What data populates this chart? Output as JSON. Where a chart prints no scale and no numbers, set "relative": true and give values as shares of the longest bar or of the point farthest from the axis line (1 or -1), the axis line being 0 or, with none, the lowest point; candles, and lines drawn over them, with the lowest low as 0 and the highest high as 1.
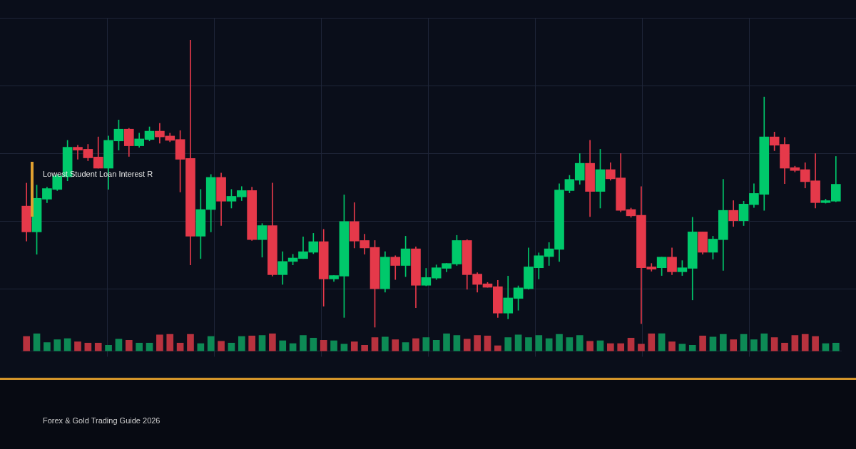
{
  "chart_data": [
    {
      "type": "candlestick",
      "title": "Lowest Student Loan Interest R",
      "subtitle": "Forex & Gold Trading Guide 2026",
      "relative": true,
      "grid": true,
      "categories": [
        null,
        null,
        null,
        null,
        null,
        null,
        null,
        null,
        null,
        null,
        null,
        null,
        null,
        null,
        null,
        null,
        null,
        null,
        null,
        null,
        null,
        null,
        null,
        null,
        null,
        null,
        null,
        null,
        null,
        null,
        null,
        null,
        null,
        null,
        null,
        null,
        null,
        null,
        null,
        null,
        null,
        null,
        null,
        null,
        null,
        null,
        null,
        null,
        null,
        null,
        null,
        null,
        null,
        null,
        null,
        null,
        null,
        null,
        null,
        null,
        null,
        null,
        null,
        null,
        null,
        null,
        null,
        null,
        null,
        null,
        null,
        null,
        null,
        null,
        null,
        null,
        null,
        null,
        null,
        null
      ],
      "ohlc": [
        [
          0.422,
          0.502,
          0.3,
          0.332
        ],
        [
          0.332,
          0.495,
          0.254,
          0.449
        ],
        [
          0.446,
          0.488,
          0.434,
          0.483
        ],
        [
          0.48,
          0.532,
          0.476,
          0.527
        ],
        [
          0.524,
          0.651,
          0.51,
          0.627
        ],
        [
          0.627,
          0.634,
          0.585,
          0.617
        ],
        [
          0.62,
          0.637,
          0.58,
          0.59
        ],
        [
          0.593,
          0.663,
          0.554,
          0.554
        ],
        [
          0.554,
          0.666,
          0.48,
          0.651
        ],
        [
          0.649,
          0.722,
          0.617,
          0.69
        ],
        [
          0.69,
          0.693,
          0.595,
          0.632
        ],
        [
          0.632,
          0.676,
          0.627,
          0.656
        ],
        [
          0.654,
          0.698,
          0.649,
          0.683
        ],
        [
          0.683,
          0.71,
          0.641,
          0.663
        ],
        [
          0.666,
          0.676,
          0.646,
          0.651
        ],
        [
          0.654,
          0.685,
          0.471,
          0.585
        ],
        [
          0.588,
          1,
          0.217,
          0.317
        ],
        [
          0.317,
          0.48,
          0.239,
          0.41
        ],
        [
          0.41,
          0.532,
          0.332,
          0.522
        ],
        [
          0.522,
          0.537,
          0.354,
          0.439
        ],
        [
          0.439,
          0.48,
          0.415,
          0.456
        ],
        [
          0.454,
          0.49,
          0.441,
          0.476
        ],
        [
          0.476,
          0.488,
          0.302,
          0.305
        ],
        [
          0.305,
          0.361,
          0.244,
          0.354
        ],
        [
          0.354,
          0.502,
          0.178,
          0.183
        ],
        [
          0.183,
          0.263,
          0.149,
          0.229
        ],
        [
          0.229,
          0.254,
          0.217,
          0.241
        ],
        [
          0.239,
          0.315,
          0.239,
          0.263
        ],
        [
          0.261,
          0.327,
          0.256,
          0.298
        ],
        [
          0.298,
          0.341,
          0.073,
          0.168
        ],
        [
          0.168,
          0.18,
          0.159,
          0.18
        ],
        [
          0.178,
          0.461,
          0.034,
          0.368
        ],
        [
          0.368,
          0.434,
          0.276,
          0.3
        ],
        [
          0.302,
          0.324,
          0.254,
          0.276
        ],
        [
          0.278,
          0.302,
          0,
          0.134
        ],
        [
          0.134,
          0.263,
          0.122,
          0.244
        ],
        [
          0.244,
          0.249,
          0.166,
          0.215
        ],
        [
          0.215,
          0.317,
          0.176,
          0.273
        ],
        [
          0.273,
          0.28,
          0.068,
          0.146
        ],
        [
          0.146,
          0.205,
          0.144,
          0.173
        ],
        [
          0.171,
          0.217,
          0.166,
          0.207
        ],
        [
          0.205,
          0.222,
          0.193,
          0.222
        ],
        [
          0.22,
          0.32,
          0.215,
          0.302
        ],
        [
          0.302,
          0.305,
          0.132,
          0.183
        ],
        [
          0.185,
          0.19,
          0.122,
          0.149
        ],
        [
          0.151,
          0.156,
          0.139,
          0.139
        ],
        [
          0.141,
          0.163,
          0.034,
          0.049
        ],
        [
          0.049,
          0.178,
          0.029,
          0.102
        ],
        [
          0.1,
          0.144,
          0.059,
          0.137
        ],
        [
          0.134,
          0.276,
          0.132,
          0.21
        ],
        [
          0.207,
          0.259,
          0.168,
          0.249
        ],
        [
          0.246,
          0.295,
          0.215,
          0.273
        ],
        [
          0.271,
          0.5,
          0.229,
          0.478
        ],
        [
          0.476,
          0.529,
          0.468,
          0.515
        ],
        [
          0.512,
          0.605,
          0.498,
          0.571
        ],
        [
          0.571,
          0.651,
          0.385,
          0.473
        ],
        [
          0.473,
          0.62,
          0.415,
          0.549
        ],
        [
          0.549,
          0.573,
          0.512,
          0.517
        ],
        [
          0.52,
          0.605,
          0.402,
          0.407
        ],
        [
          0.41,
          0.415,
          0.383,
          0.388
        ],
        [
          0.39,
          0.49,
          0.012,
          0.207
        ],
        [
          0.21,
          0.222,
          0.195,
          0.202
        ],
        [
          0.207,
          0.244,
          0.18,
          0.244
        ],
        [
          0.244,
          0.276,
          0.183,
          0.193
        ],
        [
          0.193,
          0.232,
          0.18,
          0.207
        ],
        [
          0.205,
          0.383,
          0.095,
          0.332
        ],
        [
          0.332,
          0.332,
          0.254,
          0.261
        ],
        [
          0.261,
          0.317,
          0.237,
          0.307
        ],
        [
          0.305,
          0.515,
          0.198,
          0.407
        ],
        [
          0.407,
          0.441,
          0.351,
          0.371
        ],
        [
          0.371,
          0.439,
          0.354,
          0.429
        ],
        [
          0.427,
          0.5,
          0.417,
          0.466
        ],
        [
          0.463,
          0.802,
          0.407,
          0.663
        ],
        [
          0.663,
          0.68,
          0.615,
          0.634
        ],
        [
          0.637,
          0.661,
          0.5,
          0.554
        ],
        [
          0.556,
          0.561,
          0.541,
          0.546
        ],
        [
          0.549,
          0.573,
          0.485,
          0.507
        ],
        [
          0.51,
          0.605,
          0.415,
          0.434
        ],
        [
          0.434,
          0.446,
          0.432,
          0.441
        ],
        [
          0.439,
          0.595,
          0.437,
          0.498
        ]
      ],
      "colors": [
        "#e5394a",
        "#00c96b",
        "#00c96b",
        "#00c96b",
        "#00c96b",
        "#e5394a",
        "#e5394a",
        "#e5394a",
        "#00c96b",
        "#00c96b",
        "#e5394a",
        "#00c96b",
        "#00c96b",
        "#e5394a",
        "#e5394a",
        "#e5394a",
        "#e5394a",
        "#00c96b",
        "#00c96b",
        "#e5394a",
        "#00c96b",
        "#00c96b",
        "#e5394a",
        "#00c96b",
        "#e5394a",
        "#00c96b",
        "#00c96b",
        "#00c96b",
        "#00c96b",
        "#e5394a",
        "#00c96b",
        "#00c96b",
        "#e5394a",
        "#e5394a",
        "#e5394a",
        "#00c96b",
        "#e5394a",
        "#00c96b",
        "#e5394a",
        "#00c96b",
        "#00c96b",
        "#00c96b",
        "#00c96b",
        "#e5394a",
        "#e5394a",
        "#e5394a",
        "#e5394a",
        "#00c96b",
        "#00c96b",
        "#00c96b",
        "#00c96b",
        "#00c96b",
        "#00c96b",
        "#00c96b",
        "#00c96b",
        "#e5394a",
        "#00c96b",
        "#e5394a",
        "#e5394a",
        "#e5394a",
        "#e5394a",
        "#e5394a",
        "#00c96b",
        "#e5394a",
        "#00c96b",
        "#00c96b",
        "#e5394a",
        "#00c96b",
        "#00c96b",
        "#e5394a",
        "#00c96b",
        "#00c96b",
        "#00c96b",
        "#e5394a",
        "#e5394a",
        "#e5394a",
        "#e5394a",
        "#e5394a",
        "#00c96b",
        "#00c96b"
      ]
    },
    {
      "type": "bar",
      "relative": true,
      "grid": true,
      "categories": [
        null,
        null,
        null,
        null,
        null,
        null,
        null,
        null,
        null,
        null,
        null,
        null,
        null,
        null,
        null,
        null,
        null,
        null,
        null,
        null,
        null,
        null,
        null,
        null,
        null,
        null,
        null,
        null,
        null,
        null,
        null,
        null,
        null,
        null,
        null,
        null,
        null,
        null,
        null,
        null,
        null,
        null,
        null,
        null,
        null,
        null,
        null,
        null,
        null,
        null,
        null,
        null,
        null,
        null,
        null,
        null,
        null,
        null,
        null,
        null,
        null,
        null,
        null,
        null,
        null,
        null,
        null,
        null,
        null,
        null,
        null,
        null,
        null,
        null,
        null,
        null,
        null,
        null,
        null,
        null
      ],
      "values": [
        0.82,
        0.97,
        0.48,
        0.64,
        0.7,
        0.52,
        0.45,
        0.45,
        0.33,
        0.67,
        0.61,
        0.45,
        0.45,
        0.91,
        0.94,
        0.45,
        0.94,
        0.42,
        0.82,
        0.55,
        0.45,
        0.82,
        0.85,
        0.88,
        0.97,
        0.58,
        0.42,
        0.88,
        0.73,
        0.61,
        0.58,
        0.39,
        0.52,
        0.33,
        0.76,
        0.79,
        0.64,
        0.48,
        0.7,
        0.76,
        0.61,
        0.97,
        0.88,
        0.67,
        0.88,
        0.85,
        0.3,
        0.76,
        0.91,
        0.76,
        0.88,
        0.7,
        0.94,
        0.76,
        0.88,
        0.55,
        0.58,
        0.42,
        0.42,
        0.73,
        0.39,
        0.97,
        1,
        0.52,
        0.39,
        0.33,
        0.85,
        0.79,
        0.94,
        0.64,
        0.94,
        0.64,
        0.97,
        0.76,
        0.45,
        0.88,
        0.94,
        0.82,
        0.42,
        0.45
      ],
      "colors": [
        "#b8323e",
        "#0d8a55",
        "#0d8a55",
        "#0d8a55",
        "#0d8a55",
        "#b8323e",
        "#b8323e",
        "#b8323e",
        "#0d8a55",
        "#0d8a55",
        "#b8323e",
        "#0d8a55",
        "#0d8a55",
        "#b8323e",
        "#b8323e",
        "#b8323e",
        "#b8323e",
        "#0d8a55",
        "#0d8a55",
        "#b8323e",
        "#0d8a55",
        "#0d8a55",
        "#b8323e",
        "#0d8a55",
        "#b8323e",
        "#0d8a55",
        "#0d8a55",
        "#0d8a55",
        "#0d8a55",
        "#b8323e",
        "#0d8a55",
        "#0d8a55",
        "#b8323e",
        "#b8323e",
        "#b8323e",
        "#0d8a55",
        "#b8323e",
        "#0d8a55",
        "#b8323e",
        "#0d8a55",
        "#0d8a55",
        "#0d8a55",
        "#0d8a55",
        "#b8323e",
        "#b8323e",
        "#b8323e",
        "#b8323e",
        "#0d8a55",
        "#0d8a55",
        "#0d8a55",
        "#0d8a55",
        "#0d8a55",
        "#0d8a55",
        "#0d8a55",
        "#0d8a55",
        "#b8323e",
        "#0d8a55",
        "#b8323e",
        "#b8323e",
        "#b8323e",
        "#b8323e",
        "#b8323e",
        "#0d8a55",
        "#b8323e",
        "#0d8a55",
        "#0d8a55",
        "#b8323e",
        "#0d8a55",
        "#0d8a55",
        "#b8323e",
        "#0d8a55",
        "#0d8a55",
        "#0d8a55",
        "#b8323e",
        "#b8323e",
        "#b8323e",
        "#b8323e",
        "#b8323e",
        "#0d8a55",
        "#0d8a55"
      ]
    }
  ]
}
